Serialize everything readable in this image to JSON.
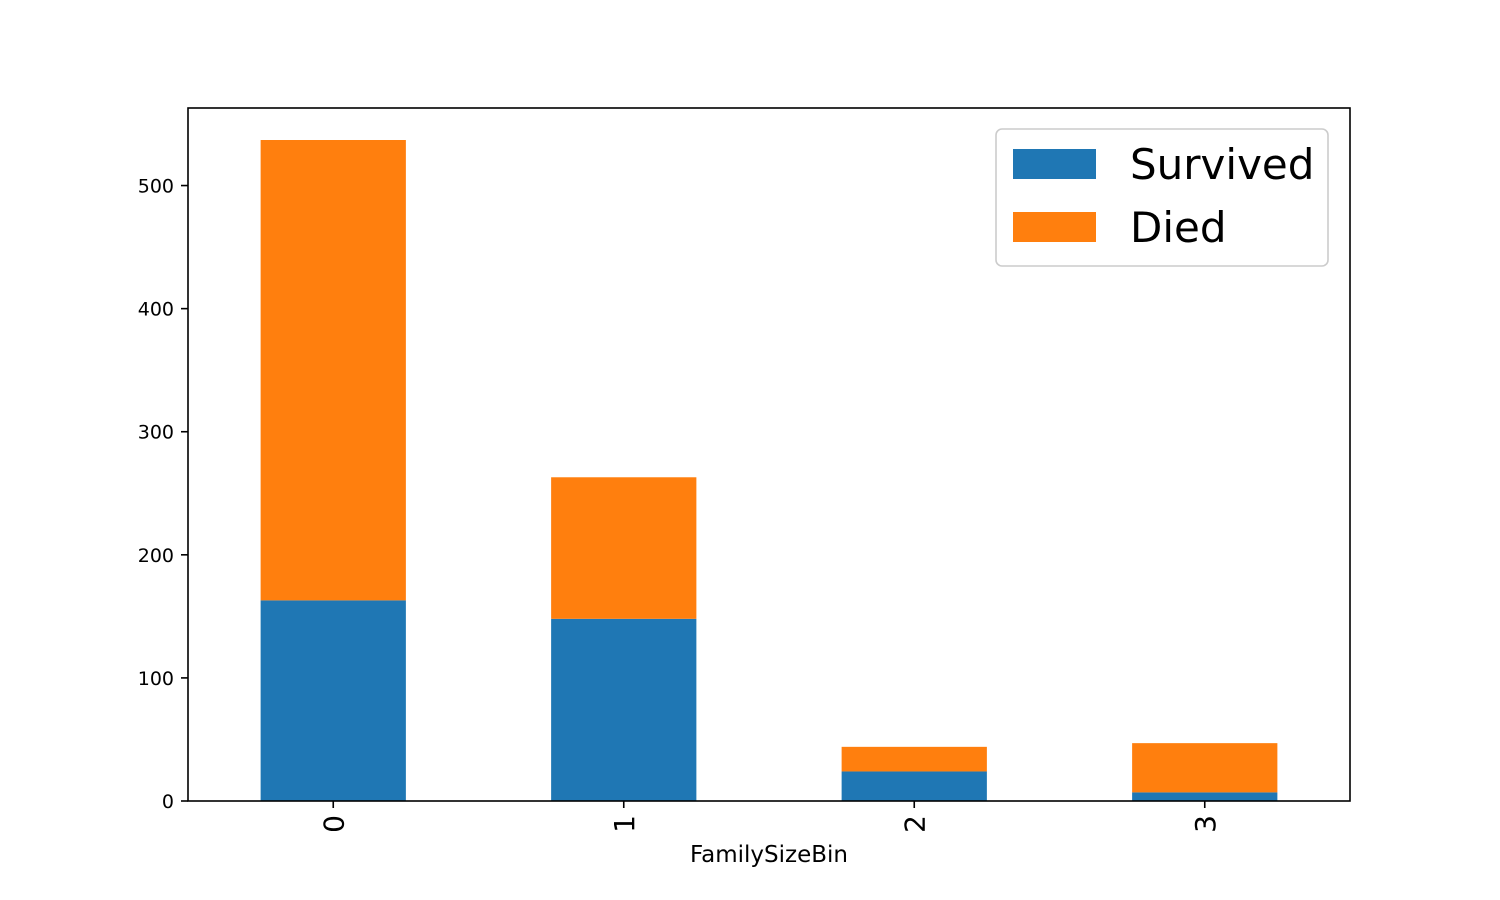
{
  "chart_data": {
    "type": "bar",
    "stacked": true,
    "categories": [
      "0",
      "1",
      "2",
      "3"
    ],
    "series": [
      {
        "name": "Survived",
        "color": "#1f77b4",
        "values": [
          163,
          148,
          24,
          7
        ]
      },
      {
        "name": "Died",
        "color": "#ff7f0e",
        "values": [
          374,
          115,
          20,
          40
        ]
      }
    ],
    "title": "",
    "xlabel": "FamilySizeBin",
    "ylabel": "",
    "ylim": [
      0,
      563
    ],
    "yticks": [
      0,
      100,
      200,
      300,
      400,
      500
    ],
    "grid": false,
    "legend_position": "top-right",
    "xtick_rotation": "vertical"
  }
}
